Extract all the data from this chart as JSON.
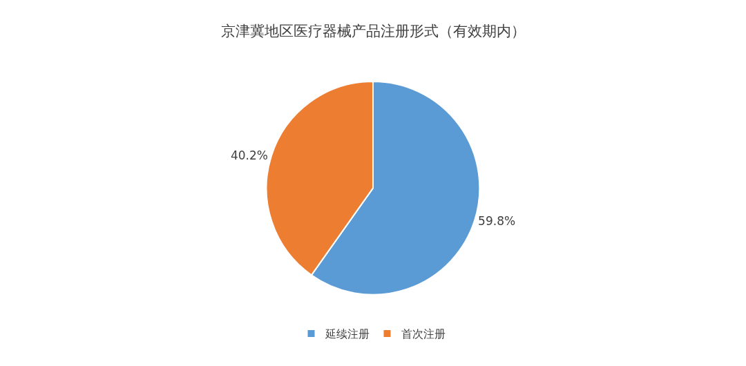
{
  "chart_data": {
    "type": "pie",
    "title": "京津冀地区医疗器械产品注册形式（有效期内）",
    "categories": [
      "延续注册",
      "首次注册"
    ],
    "values": [
      59.8,
      40.2
    ],
    "colors": [
      "#5b9bd5",
      "#ed7d31"
    ],
    "value_labels": [
      "59.8%",
      "40.2%"
    ],
    "legend": "bottom"
  }
}
